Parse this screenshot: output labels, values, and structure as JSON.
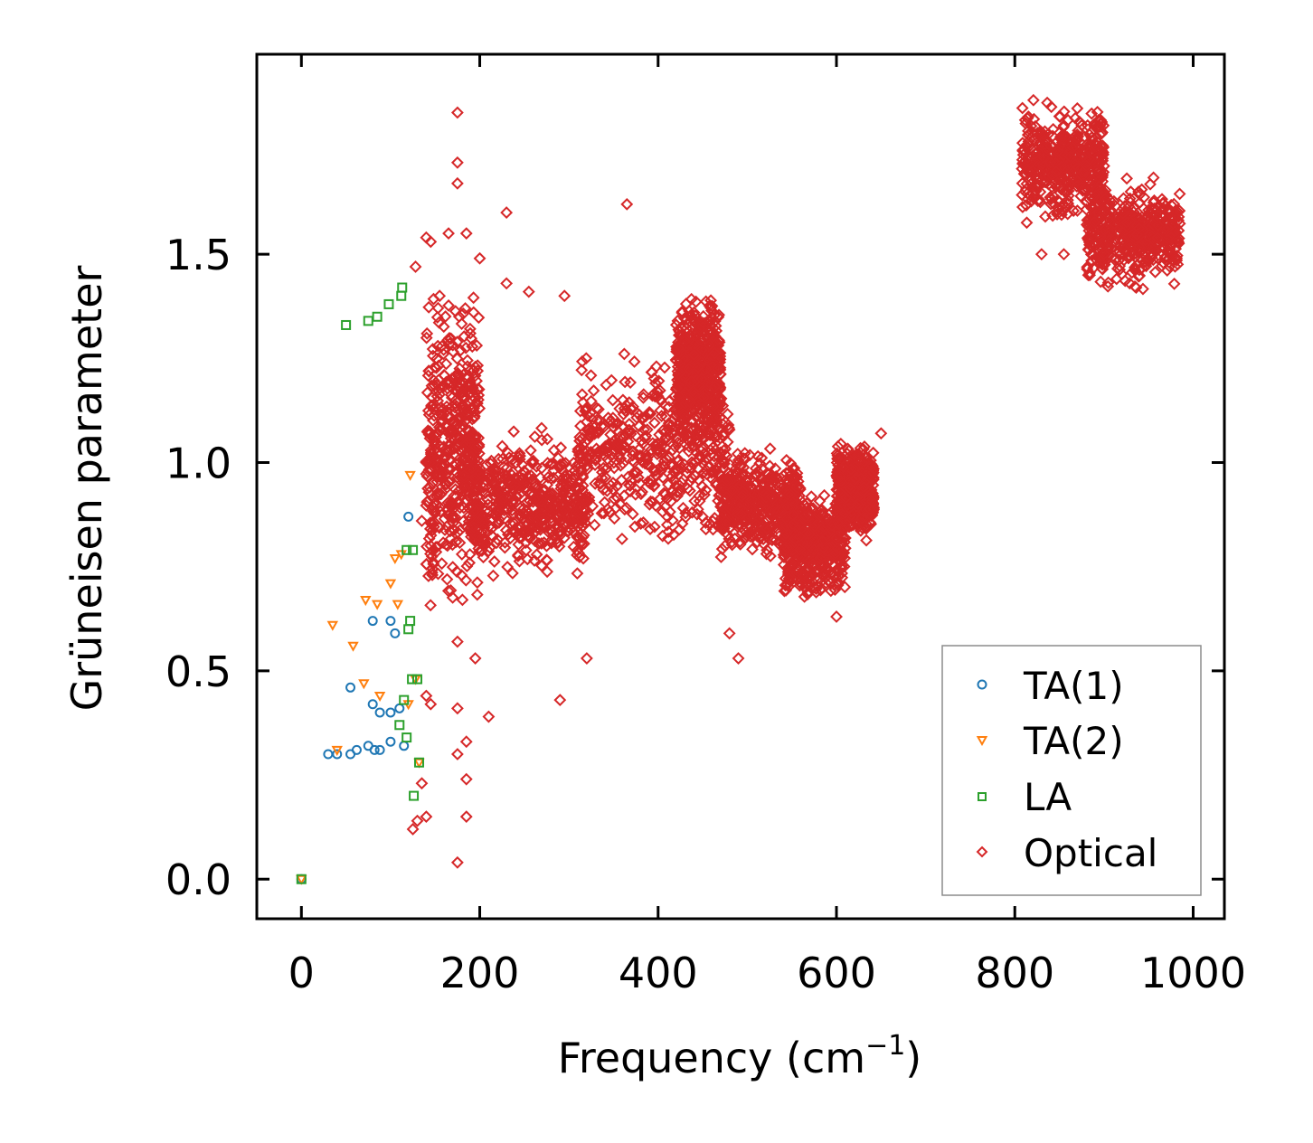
{
  "chart_data": {
    "type": "scatter",
    "xlabel": "Frequency (cm",
    "xlabel_sup": "−1",
    "xlabel_end": ")",
    "ylabel": "Grüneisen parameter",
    "xlim": [
      -50,
      1035
    ],
    "ylim": [
      -0.095,
      1.98
    ],
    "xticks": [
      0,
      200,
      400,
      600,
      800,
      1000
    ],
    "xtick_labels": [
      "0",
      "200",
      "400",
      "600",
      "800",
      "1000"
    ],
    "yticks": [
      0.0,
      0.5,
      1.0,
      1.5
    ],
    "ytick_labels": [
      "0.0",
      "0.5",
      "1.0",
      "1.5"
    ],
    "legend_position": "lower-right",
    "series": [
      {
        "name": "TA(1)",
        "marker": "circle",
        "color": "#1f77b4",
        "points": [
          [
            0,
            0.0
          ],
          [
            30,
            0.3
          ],
          [
            40,
            0.3
          ],
          [
            55,
            0.3
          ],
          [
            62,
            0.31
          ],
          [
            75,
            0.32
          ],
          [
            88,
            0.31
          ],
          [
            100,
            0.33
          ],
          [
            115,
            0.32
          ],
          [
            82,
            0.31
          ],
          [
            80,
            0.42
          ],
          [
            88,
            0.4
          ],
          [
            100,
            0.4
          ],
          [
            110,
            0.41
          ],
          [
            55,
            0.46
          ],
          [
            80,
            0.62
          ],
          [
            100,
            0.62
          ],
          [
            105,
            0.59
          ],
          [
            120,
            0.87
          ]
        ]
      },
      {
        "name": "TA(2)",
        "marker": "triangle-down",
        "color": "#ff7f0e",
        "points": [
          [
            0,
            0.0
          ],
          [
            35,
            0.61
          ],
          [
            40,
            0.31
          ],
          [
            58,
            0.56
          ],
          [
            70,
            0.47
          ],
          [
            72,
            0.67
          ],
          [
            85,
            0.66
          ],
          [
            88,
            0.44
          ],
          [
            100,
            0.71
          ],
          [
            105,
            0.77
          ],
          [
            108,
            0.66
          ],
          [
            112,
            0.78
          ],
          [
            122,
            0.97
          ],
          [
            120,
            0.42
          ],
          [
            128,
            0.48
          ],
          [
            132,
            0.28
          ]
        ]
      },
      {
        "name": "LA",
        "marker": "square",
        "color": "#2ca02c",
        "points": [
          [
            0,
            0.0
          ],
          [
            50,
            1.33
          ],
          [
            75,
            1.34
          ],
          [
            85,
            1.35
          ],
          [
            98,
            1.38
          ],
          [
            112,
            1.4
          ],
          [
            113,
            1.42
          ],
          [
            110,
            0.37
          ],
          [
            115,
            0.43
          ],
          [
            118,
            0.34
          ],
          [
            120,
            0.6
          ],
          [
            122,
            0.62
          ],
          [
            124,
            0.48
          ],
          [
            126,
            0.2
          ],
          [
            118,
            0.79
          ],
          [
            125,
            0.79
          ],
          [
            130,
            0.48
          ],
          [
            132,
            0.28
          ]
        ]
      },
      {
        "name": "Optical",
        "marker": "diamond",
        "color": "#d62728",
        "cloud_segments": [
          {
            "x": [
              140,
              200
            ],
            "y": [
              0.6,
              1.45
            ]
          },
          {
            "x": [
              190,
              320
            ],
            "y": [
              0.7,
              1.1
            ]
          },
          {
            "x": [
              310,
              480
            ],
            "y": [
              0.75,
              1.3
            ]
          },
          {
            "x": [
              420,
              470
            ],
            "y": [
              1.0,
              1.45
            ]
          },
          {
            "x": [
              470,
              560
            ],
            "y": [
              0.75,
              1.05
            ]
          },
          {
            "x": [
              540,
              610
            ],
            "y": [
              0.65,
              0.95
            ]
          },
          {
            "x": [
              600,
              642
            ],
            "y": [
              0.8,
              1.07
            ]
          },
          {
            "x": [
              808,
              900
            ],
            "y": [
              1.55,
              1.88
            ]
          },
          {
            "x": [
              880,
              985
            ],
            "y": [
              1.4,
              1.7
            ]
          }
        ],
        "outliers": [
          [
            175,
            1.84
          ],
          [
            175,
            1.72
          ],
          [
            175,
            1.67
          ],
          [
            230,
            1.6
          ],
          [
            365,
            1.62
          ],
          [
            140,
            1.54
          ],
          [
            145,
            1.53
          ],
          [
            165,
            1.55
          ],
          [
            185,
            1.55
          ],
          [
            200,
            1.49
          ],
          [
            128,
            1.47
          ],
          [
            230,
            1.43
          ],
          [
            255,
            1.41
          ],
          [
            295,
            1.4
          ],
          [
            155,
            1.4
          ],
          [
            140,
            1.0
          ],
          [
            135,
            0.86
          ],
          [
            175,
            0.57
          ],
          [
            195,
            0.53
          ],
          [
            210,
            0.39
          ],
          [
            320,
            0.53
          ],
          [
            290,
            0.43
          ],
          [
            175,
            0.41
          ],
          [
            140,
            0.44
          ],
          [
            145,
            0.42
          ],
          [
            185,
            0.33
          ],
          [
            175,
            0.3
          ],
          [
            185,
            0.24
          ],
          [
            135,
            0.23
          ],
          [
            140,
            0.15
          ],
          [
            130,
            0.14
          ],
          [
            125,
            0.12
          ],
          [
            175,
            0.04
          ],
          [
            185,
            0.15
          ],
          [
            490,
            0.53
          ],
          [
            480,
            0.59
          ],
          [
            600,
            0.63
          ],
          [
            650,
            1.07
          ],
          [
            960,
            1.54
          ],
          [
            900,
            1.5
          ],
          [
            855,
            1.5
          ],
          [
            870,
            1.78
          ],
          [
            840,
            1.72
          ],
          [
            830,
            1.5
          ]
        ]
      }
    ]
  }
}
